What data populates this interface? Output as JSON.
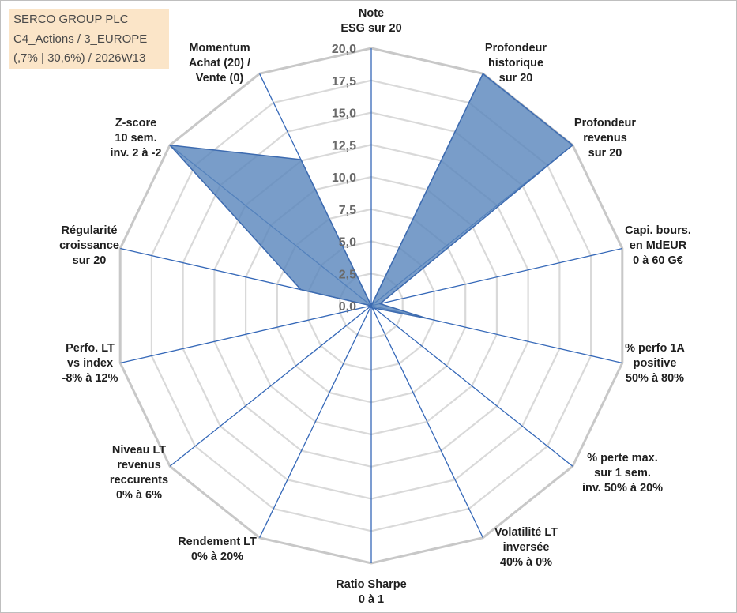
{
  "header": {
    "lines": [
      "SERCO GROUP PLC",
      "C4_Actions / 3_EUROPE",
      "(,7% | 30,6%) / 2026W13"
    ]
  },
  "colors": {
    "fill": "#5b87bd",
    "stroke": "#3d6bb0",
    "spoke": "#3568b8",
    "grid_outer": "#c8c8c8",
    "grid_inner": "#d9d9d9",
    "title_bg": "#fbe5c8"
  },
  "chart_data": {
    "type": "radar",
    "scale": {
      "min": 0,
      "max": 20,
      "step": 2.5
    },
    "tick_labels": [
      "0,0",
      "2,5",
      "5,0",
      "7,5",
      "10,0",
      "12,5",
      "15,0",
      "17,5",
      "20,0"
    ],
    "axes": [
      {
        "label": [
          "Note",
          "ESG sur 20"
        ],
        "value": 0
      },
      {
        "label": [
          "Profondeur",
          "historique",
          "sur 20"
        ],
        "value": 20
      },
      {
        "label": [
          "Profondeur",
          "revenus",
          "sur 20"
        ],
        "value": 20
      },
      {
        "label": [
          "Capi. bours.",
          "en MdEUR",
          "0 à 60 G€"
        ],
        "value": 0.7
      },
      {
        "label": [
          "% perfo 1A",
          "positive",
          "50% à 80%"
        ],
        "value": 4.5
      },
      {
        "label": [
          "% perte max.",
          "sur 1 sem.",
          "inv. 50% à 20%"
        ],
        "value": 0.3
      },
      {
        "label": [
          "Volatilité LT",
          "inversée",
          "40% à 0%"
        ],
        "value": 0.3
      },
      {
        "label": [
          "Ratio Sharpe",
          "0 à 1"
        ],
        "value": 0
      },
      {
        "label": [
          "Rendement LT",
          "0% à 20%"
        ],
        "value": 0
      },
      {
        "label": [
          "Niveau LT",
          "revenus",
          "reccurents",
          "0% à 6%"
        ],
        "value": 0
      },
      {
        "label": [
          "Perfo. LT",
          "vs index",
          "-8% à 12%"
        ],
        "value": 0
      },
      {
        "label": [
          "Régularité",
          "croissance",
          "sur 20"
        ],
        "value": 5.6
      },
      {
        "label": [
          "Z-score",
          "10 sem.",
          "inv. 2 à -2"
        ],
        "value": 20
      },
      {
        "label": [
          "Momentum",
          "Achat (20) /",
          "Vente (0)"
        ],
        "value": 12.6
      }
    ]
  }
}
